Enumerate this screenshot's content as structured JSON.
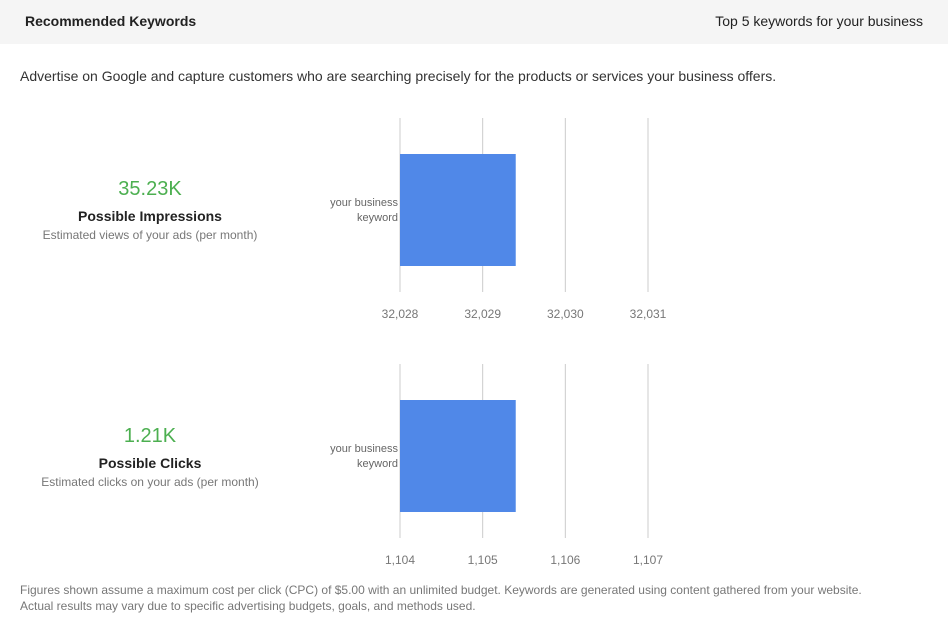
{
  "header": {
    "title": "Recommended Keywords",
    "subtitle": "Top 5 keywords for your business"
  },
  "intro": "Advertise on Google and capture customers who are searching precisely for the products or services your business offers.",
  "metrics": [
    {
      "value": "35.23K",
      "label": "Possible Impressions",
      "description": "Estimated views of your ads (per month)"
    },
    {
      "value": "1.21K",
      "label": "Possible Clicks",
      "description": "Estimated clicks on your ads (per month)"
    }
  ],
  "chart_data": [
    {
      "type": "bar",
      "orientation": "horizontal",
      "categories": [
        "your business keyword"
      ],
      "category_lines": [
        "your business",
        "keyword"
      ],
      "values": [
        32029.4
      ],
      "xlim": [
        32028,
        32031
      ],
      "xticks": [
        32028,
        32029,
        32030,
        32031
      ],
      "xtick_labels": [
        "32,028",
        "32,029",
        "32,030",
        "32,031"
      ],
      "grid": true,
      "bar_color": "#5088e8"
    },
    {
      "type": "bar",
      "orientation": "horizontal",
      "categories": [
        "your business keyword"
      ],
      "category_lines": [
        "your business",
        "keyword"
      ],
      "values": [
        1105.4
      ],
      "xlim": [
        1104,
        1107
      ],
      "xticks": [
        1104,
        1105,
        1106,
        1107
      ],
      "xtick_labels": [
        "1,104",
        "1,105",
        "1,106",
        "1,107"
      ],
      "grid": true,
      "bar_color": "#5088e8"
    }
  ],
  "footer": {
    "line1": "Figures shown assume a maximum cost per click (CPC) of $5.00 with an unlimited budget. Keywords are generated using content gathered from your website.",
    "line2": "Actual results may vary due to specific advertising budgets, goals, and methods used."
  }
}
